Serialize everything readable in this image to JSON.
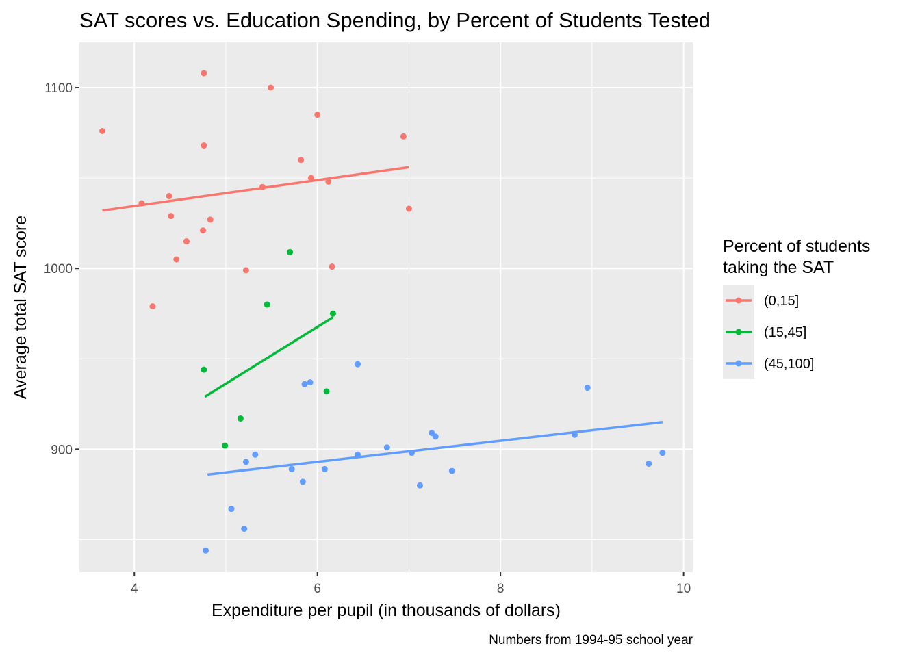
{
  "chart_data": {
    "type": "scatter",
    "title": "SAT scores vs. Education Spending, by Percent of Students Tested",
    "xlabel": "Expenditure per pupil (in thousands of dollars)",
    "ylabel": "Average total SAT score",
    "caption": "Numbers from 1994-95 school year",
    "xlim": [
      3.4,
      10.1
    ],
    "ylim": [
      832,
      1125
    ],
    "x_ticks": [
      4,
      6,
      8,
      10
    ],
    "x_tick_labels": [
      "4",
      "6",
      "8",
      "10"
    ],
    "y_ticks": [
      900,
      1000,
      1100
    ],
    "y_tick_labels": [
      "900",
      "1000",
      "1100"
    ],
    "grid": true,
    "legend": {
      "title_lines": [
        "Percent of students",
        "taking the SAT"
      ],
      "position": "right"
    },
    "series": [
      {
        "name": "(0,15]",
        "color": "#F8766D",
        "trend": [
          [
            3.65,
            1032
          ],
          [
            7.0,
            1056
          ]
        ],
        "points": [
          [
            3.65,
            1076
          ],
          [
            4.08,
            1036
          ],
          [
            4.2,
            979
          ],
          [
            4.38,
            1040
          ],
          [
            4.4,
            1029
          ],
          [
            4.46,
            1005
          ],
          [
            4.57,
            1015
          ],
          [
            4.75,
            1021
          ],
          [
            4.76,
            1108
          ],
          [
            4.76,
            1068
          ],
          [
            4.83,
            1027
          ],
          [
            5.22,
            999
          ],
          [
            5.4,
            1045
          ],
          [
            5.49,
            1100
          ],
          [
            5.82,
            1060
          ],
          [
            5.93,
            1050
          ],
          [
            6.0,
            1085
          ],
          [
            6.12,
            1048
          ],
          [
            6.16,
            1001
          ],
          [
            6.94,
            1073
          ],
          [
            7.0,
            1033
          ]
        ]
      },
      {
        "name": "(15,45]",
        "color": "#00BA38",
        "trend": [
          [
            4.77,
            929
          ],
          [
            6.17,
            973
          ]
        ],
        "points": [
          [
            4.76,
            944
          ],
          [
            4.99,
            902
          ],
          [
            5.16,
            917
          ],
          [
            5.45,
            980
          ],
          [
            5.7,
            1009
          ],
          [
            6.1,
            932
          ],
          [
            6.17,
            975
          ]
        ]
      },
      {
        "name": "(45,100]",
        "color": "#619CFF",
        "trend": [
          [
            4.8,
            886
          ],
          [
            9.77,
            915
          ]
        ],
        "points": [
          [
            4.78,
            844
          ],
          [
            5.06,
            867
          ],
          [
            5.2,
            856
          ],
          [
            5.22,
            893
          ],
          [
            5.32,
            897
          ],
          [
            5.72,
            889
          ],
          [
            5.84,
            882
          ],
          [
            5.86,
            936
          ],
          [
            5.92,
            937
          ],
          [
            6.08,
            889
          ],
          [
            6.44,
            897
          ],
          [
            6.44,
            947
          ],
          [
            6.76,
            901
          ],
          [
            7.03,
            898
          ],
          [
            7.12,
            880
          ],
          [
            7.25,
            909
          ],
          [
            7.29,
            907
          ],
          [
            7.47,
            888
          ],
          [
            8.81,
            908
          ],
          [
            8.95,
            934
          ],
          [
            9.62,
            892
          ],
          [
            9.77,
            898
          ]
        ]
      }
    ]
  }
}
